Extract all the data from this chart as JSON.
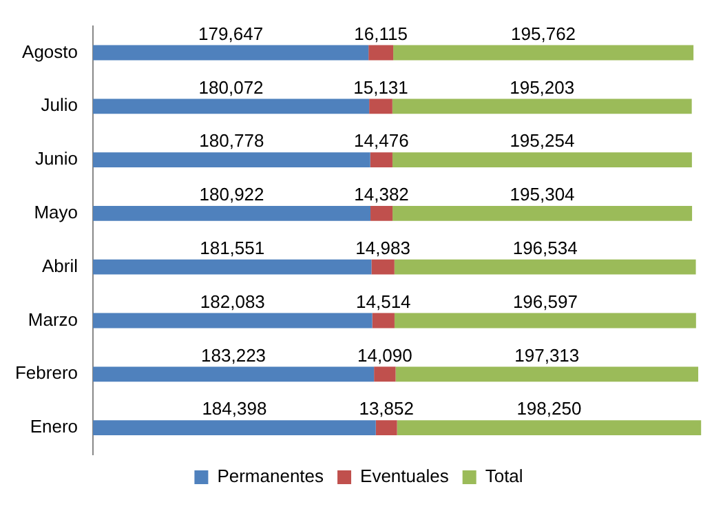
{
  "chart_data": {
    "type": "bar",
    "orientation": "horizontal",
    "stacked": true,
    "categories": [
      "Agosto",
      "Julio",
      "Junio",
      "Mayo",
      "Abril",
      "Marzo",
      "Febrero",
      "Enero"
    ],
    "series": [
      {
        "name": "Permanentes",
        "color": "#4f81bd",
        "values": [
          179647,
          180072,
          180778,
          180922,
          181551,
          182083,
          183223,
          184398
        ],
        "value_labels": [
          "179,647",
          "180,072",
          "180,778",
          "180,922",
          "181,551",
          "182,083",
          "183,223",
          "184,398"
        ]
      },
      {
        "name": "Eventuales",
        "color": "#c0504d",
        "values": [
          16115,
          15131,
          14476,
          14382,
          14983,
          14514,
          14090,
          13852
        ],
        "value_labels": [
          "16,115",
          "15,131",
          "14,476",
          "14,382",
          "14,983",
          "14,514",
          "14,090",
          "13,852"
        ]
      },
      {
        "name": "Total",
        "color": "#9bbb59",
        "values": [
          195762,
          195203,
          195254,
          195304,
          196534,
          196597,
          197313,
          198250
        ],
        "value_labels": [
          "195,762",
          "195,203",
          "195,254",
          "195,304",
          "196,534",
          "196,597",
          "197,313",
          "198,250"
        ]
      }
    ],
    "legend": "bottom",
    "grid": false,
    "tick_labels": "y"
  }
}
